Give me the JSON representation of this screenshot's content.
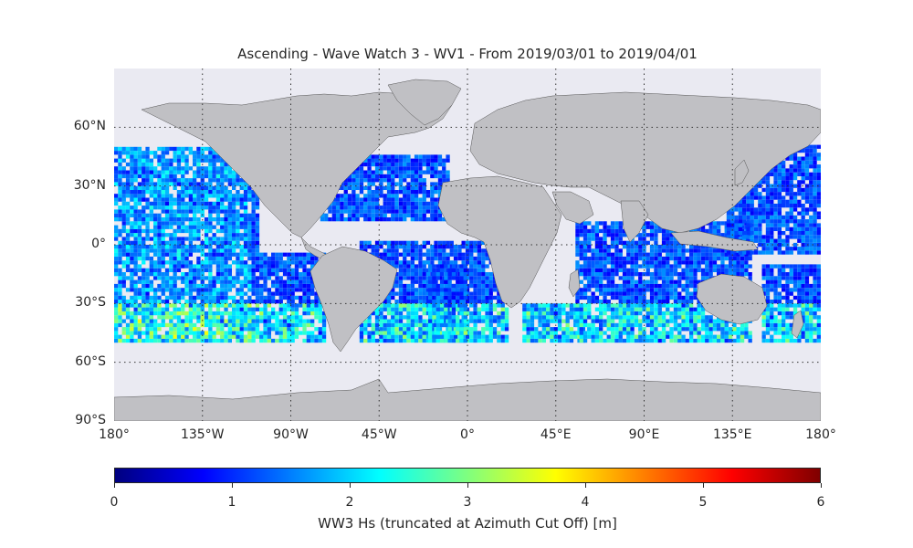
{
  "title": "Ascending - Wave Watch 3 - WV1 - From 2019/03/01 to 2019/04/01",
  "lat_labels": [
    {
      "text": "60°N",
      "lat": 60
    },
    {
      "text": "30°N",
      "lat": 30
    },
    {
      "text": "0°",
      "lat": 0
    },
    {
      "text": "30°S",
      "lat": -30
    },
    {
      "text": "60°S",
      "lat": -60
    },
    {
      "text": "90°S",
      "lat": -90
    }
  ],
  "lon_labels": [
    {
      "text": "180°",
      "lon": -180
    },
    {
      "text": "135°W",
      "lon": -135
    },
    {
      "text": "90°W",
      "lon": -90
    },
    {
      "text": "45°W",
      "lon": -45
    },
    {
      "text": "0°",
      "lon": 0
    },
    {
      "text": "45°E",
      "lon": 45
    },
    {
      "text": "90°E",
      "lon": 90
    },
    {
      "text": "135°E",
      "lon": 135
    },
    {
      "text": "180°",
      "lon": 180
    }
  ],
  "colorbar": {
    "label": "WW3 Hs (truncated at Azimuth Cut Off) [m]",
    "ticks": [
      "0",
      "1",
      "2",
      "3",
      "4",
      "5",
      "6"
    ],
    "min": 0,
    "max": 6,
    "colormap": "jet"
  },
  "colors": {
    "ocean": "#eaeaf2",
    "land": "#c0c0c4",
    "coast": "#555555"
  }
}
